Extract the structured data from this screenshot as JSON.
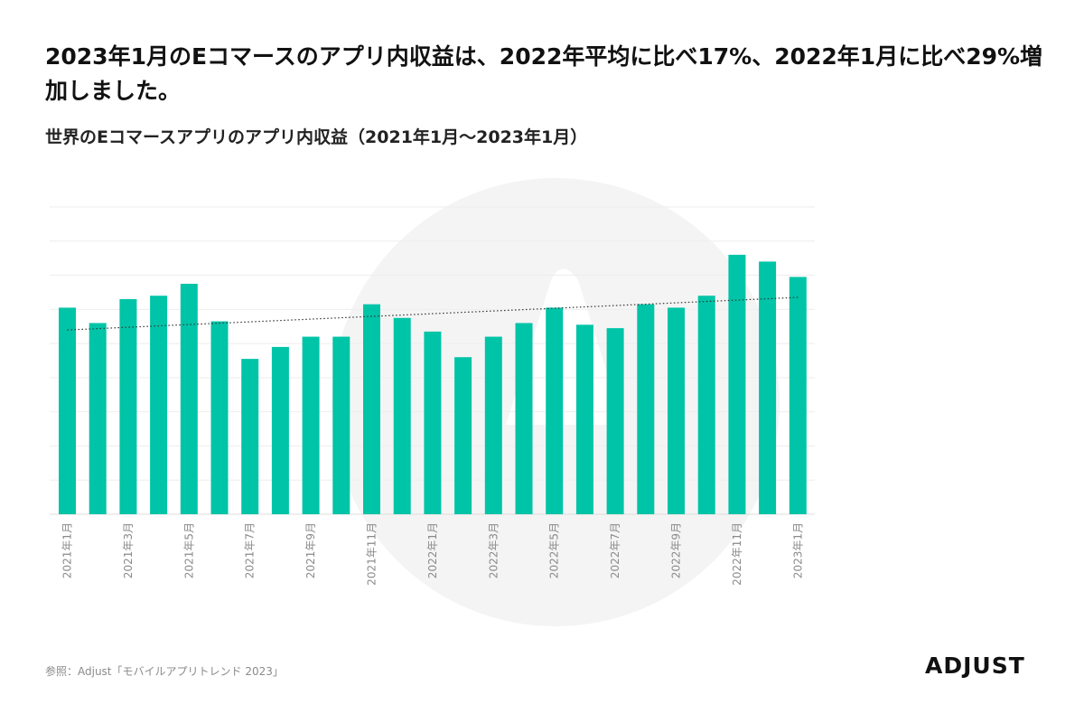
{
  "headline": "2023年1月のEコマースのアプリ内収益は、2022年平均に比べ17%、2022年1月に比べ29%増加しました。",
  "subtitle": "世界のEコマースアプリのアプリ内収益（2021年1月～2023年1月）",
  "source": "参照：Adjust「モバイルアプリトレンド 2023」",
  "logo": "ADJUST",
  "colors": {
    "bar": "#00c4a7",
    "trendline": "#333333",
    "grid": "#eeeeee",
    "watermark": "#f4f4f4"
  },
  "chart_data": {
    "type": "bar",
    "title": "世界のEコマースアプリのアプリ内収益（2021年1月～2023年1月）",
    "xlabel": "",
    "ylabel": "",
    "grid": true,
    "trendline": true,
    "categories": [
      "2021年1月",
      "2021年2月",
      "2021年3月",
      "2021年4月",
      "2021年5月",
      "2021年6月",
      "2021年7月",
      "2021年8月",
      "2021年9月",
      "2021年10月",
      "2021年11月",
      "2021年12月",
      "2022年1月",
      "2022年2月",
      "2022年3月",
      "2022年4月",
      "2022年5月",
      "2022年6月",
      "2022年7月",
      "2022年8月",
      "2022年9月",
      "2022年10月",
      "2022年11月",
      "2022年12月",
      "2023年1月"
    ],
    "tick_labels_shown": [
      "2021年1月",
      "2021年3月",
      "2021年5月",
      "2021年7月",
      "2021年9月",
      "2021年11月",
      "2022年1月",
      "2022年3月",
      "2022年5月",
      "2022年7月",
      "2022年9月",
      "2022年11月",
      "2023年1月"
    ],
    "values": [
      6.05,
      5.6,
      6.3,
      6.4,
      6.75,
      5.65,
      4.55,
      4.9,
      5.2,
      5.2,
      6.15,
      5.75,
      5.35,
      4.6,
      5.2,
      5.6,
      6.05,
      5.55,
      5.45,
      6.15,
      6.05,
      6.4,
      7.6,
      7.4,
      6.95
    ],
    "ylim": [
      0,
      9
    ]
  }
}
